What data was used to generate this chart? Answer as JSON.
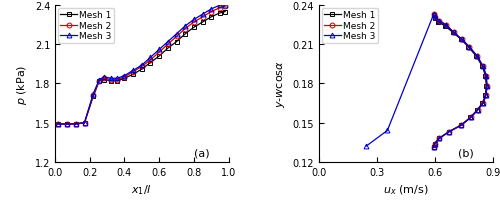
{
  "plot_a": {
    "title": "(a)",
    "xlabel": "$x_1/l$",
    "ylabel": "$p$ (kPa)",
    "xlim": [
      0.0,
      1.0
    ],
    "ylim": [
      1.2,
      2.4
    ],
    "yticks": [
      1.2,
      1.5,
      1.8,
      2.1,
      2.4
    ],
    "xticks": [
      0.0,
      0.2,
      0.4,
      0.6,
      0.8,
      1.0
    ],
    "mesh1_x": [
      0.02,
      0.07,
      0.12,
      0.17,
      0.22,
      0.255,
      0.285,
      0.32,
      0.36,
      0.4,
      0.45,
      0.5,
      0.55,
      0.6,
      0.65,
      0.7,
      0.75,
      0.8,
      0.85,
      0.9,
      0.95,
      0.98
    ],
    "mesh1_y": [
      1.49,
      1.49,
      1.49,
      1.5,
      1.7,
      1.82,
      1.83,
      1.82,
      1.82,
      1.84,
      1.87,
      1.91,
      1.96,
      2.01,
      2.07,
      2.12,
      2.18,
      2.23,
      2.27,
      2.31,
      2.34,
      2.35
    ],
    "mesh2_x": [
      0.02,
      0.07,
      0.12,
      0.17,
      0.22,
      0.255,
      0.285,
      0.32,
      0.36,
      0.4,
      0.45,
      0.5,
      0.55,
      0.6,
      0.65,
      0.7,
      0.75,
      0.8,
      0.85,
      0.9,
      0.95,
      0.98
    ],
    "mesh2_y": [
      1.49,
      1.49,
      1.49,
      1.5,
      1.71,
      1.82,
      1.84,
      1.83,
      1.83,
      1.85,
      1.89,
      1.93,
      1.98,
      2.04,
      2.1,
      2.16,
      2.22,
      2.27,
      2.31,
      2.35,
      2.38,
      2.39
    ],
    "mesh3_x": [
      0.02,
      0.07,
      0.12,
      0.17,
      0.22,
      0.255,
      0.285,
      0.32,
      0.36,
      0.4,
      0.45,
      0.5,
      0.55,
      0.6,
      0.65,
      0.7,
      0.75,
      0.8,
      0.85,
      0.9,
      0.95,
      0.98
    ],
    "mesh3_y": [
      1.49,
      1.49,
      1.49,
      1.5,
      1.72,
      1.83,
      1.85,
      1.84,
      1.84,
      1.86,
      1.9,
      1.94,
      2.0,
      2.06,
      2.12,
      2.18,
      2.24,
      2.29,
      2.33,
      2.37,
      2.4,
      2.4
    ]
  },
  "plot_b": {
    "title": "(b)",
    "xlabel": "$u_x$ (m/s)",
    "ylabel": "$y$-$w$cos$\\alpha$",
    "xlim": [
      0.0,
      0.9
    ],
    "ylim": [
      0.12,
      0.24
    ],
    "yticks": [
      0.12,
      0.15,
      0.18,
      0.21,
      0.24
    ],
    "xticks": [
      0.0,
      0.3,
      0.6,
      0.9
    ],
    "mesh1_x": [
      0.595,
      0.6,
      0.62,
      0.655,
      0.695,
      0.735,
      0.775,
      0.815,
      0.848,
      0.863,
      0.868,
      0.863,
      0.848,
      0.822,
      0.785,
      0.735,
      0.672,
      0.622,
      0.6,
      0.595
    ],
    "mesh1_y": [
      0.232,
      0.23,
      0.227,
      0.224,
      0.219,
      0.214,
      0.208,
      0.201,
      0.193,
      0.186,
      0.178,
      0.171,
      0.165,
      0.16,
      0.154,
      0.148,
      0.143,
      0.138,
      0.134,
      0.131
    ],
    "mesh2_x": [
      0.595,
      0.6,
      0.623,
      0.658,
      0.7,
      0.74,
      0.78,
      0.82,
      0.852,
      0.867,
      0.872,
      0.866,
      0.852,
      0.825,
      0.788,
      0.738,
      0.675,
      0.625,
      0.602,
      0.596
    ],
    "mesh2_y": [
      0.233,
      0.231,
      0.228,
      0.225,
      0.219,
      0.214,
      0.208,
      0.201,
      0.193,
      0.186,
      0.178,
      0.171,
      0.165,
      0.16,
      0.154,
      0.148,
      0.143,
      0.138,
      0.134,
      0.131
    ],
    "mesh3_x": [
      0.245,
      0.355,
      0.595,
      0.6,
      0.623,
      0.658,
      0.7,
      0.74,
      0.78,
      0.82,
      0.852,
      0.867,
      0.872,
      0.866,
      0.852,
      0.825,
      0.788,
      0.738,
      0.675,
      0.625,
      0.602,
      0.596
    ],
    "mesh3_y": [
      0.132,
      0.144,
      0.233,
      0.231,
      0.228,
      0.225,
      0.219,
      0.214,
      0.208,
      0.201,
      0.193,
      0.186,
      0.178,
      0.171,
      0.165,
      0.16,
      0.154,
      0.148,
      0.143,
      0.138,
      0.134,
      0.131
    ]
  },
  "mesh1_color": "#000000",
  "mesh2_color": "#cc0000",
  "mesh3_color": "#0000cc",
  "mesh1_marker": "s",
  "mesh2_marker": "o",
  "mesh3_marker": "^",
  "linewidth": 0.9,
  "markersize": 3.5,
  "legend_fontsize": 6.5,
  "axis_label_fontsize": 8,
  "tick_fontsize": 7,
  "annot_fontsize": 8
}
